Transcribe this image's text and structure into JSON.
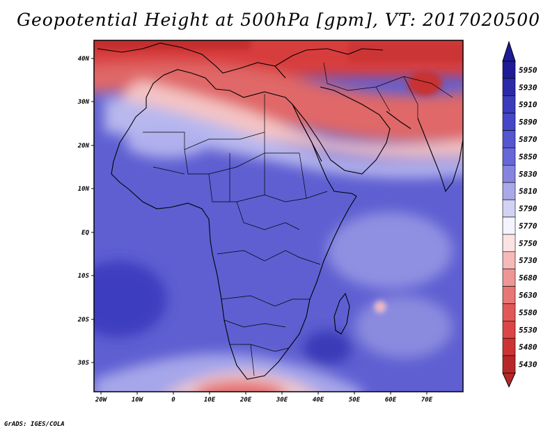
{
  "title": "Geopotential Height at 500hPa [gpm], VT: 2017020500",
  "footer": "GrADS: IGES/COLA",
  "map": {
    "variable": "Geopotential Height at 500hPa",
    "units": "gpm",
    "valid_time": "2017020500",
    "region": "Africa and western Indian Ocean",
    "lon_range": [
      -23,
      80
    ],
    "lat_range": [
      -37,
      45
    ],
    "lon_ticks": [
      "20W",
      "10W",
      "0",
      "10E",
      "20E",
      "30E",
      "40E",
      "50E",
      "60E",
      "70E"
    ],
    "lat_ticks": [
      "40N",
      "30N",
      "20N",
      "10N",
      "EQ",
      "10S",
      "20S",
      "30S"
    ]
  },
  "colorbar": {
    "levels": [
      "5950",
      "5930",
      "5910",
      "5890",
      "5870",
      "5850",
      "5830",
      "5810",
      "5790",
      "5770",
      "5750",
      "5730",
      "5680",
      "5630",
      "5580",
      "5530",
      "5480",
      "5430"
    ],
    "colors": [
      "#1e1b96",
      "#2d2aa8",
      "#3b3bbd",
      "#4646c8",
      "#5656d0",
      "#6767d8",
      "#8585e0",
      "#a9a9ea",
      "#d2d2f4",
      "#f4f4ff",
      "#fbe3e3",
      "#f5b9b9",
      "#ee9696",
      "#e87676",
      "#e25858",
      "#dc4545",
      "#cc3434",
      "#b82727"
    ]
  }
}
